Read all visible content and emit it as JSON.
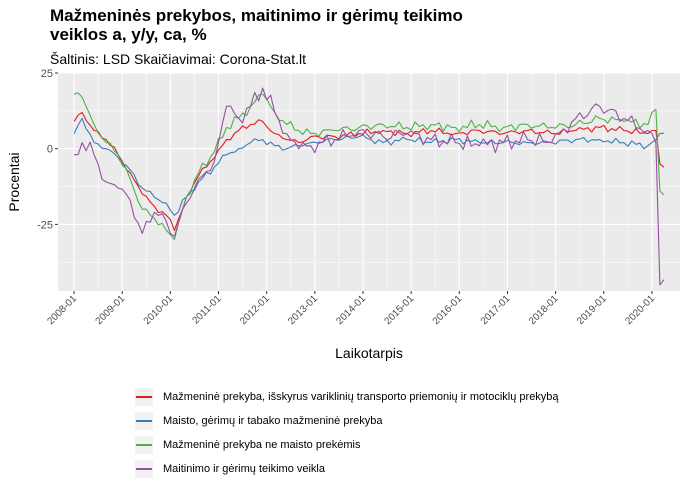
{
  "title": "Mažmeninės prekybos, maitinimo ir gėrimų teikimo veiklos a, y/y, ca, %",
  "subtitle": "Šaltinis: LSD Skaičiavimai: Corona-Stat.lt",
  "chart_data": {
    "type": "line",
    "xlabel": "Laikotarpis",
    "ylabel": "Procentai",
    "ylim": [
      -47,
      25
    ],
    "yticks": [
      -25,
      0,
      25
    ],
    "x_tick_labels": [
      "2008-01",
      "2009-01",
      "2010-01",
      "2011-01",
      "2012-01",
      "2013-01",
      "2014-01",
      "2015-01",
      "2016-01",
      "2017-01",
      "2018-01",
      "2019-01",
      "2020-01"
    ],
    "x_start": "2008-01",
    "x_end": "2020-04",
    "grid": true,
    "legend_position": "bottom",
    "series": [
      {
        "name": "Mažmeninė prekyba, išskyrus variklinių transporto priemonių ir motociklų prekybą",
        "color": "#e41a1c",
        "keypoints": [
          [
            "2008-01",
            9
          ],
          [
            "2008-03",
            12
          ],
          [
            "2008-06",
            6
          ],
          [
            "2008-09",
            3
          ],
          [
            "2008-12",
            -2
          ],
          [
            "2009-03",
            -8
          ],
          [
            "2009-06",
            -15
          ],
          [
            "2009-09",
            -19
          ],
          [
            "2009-12",
            -22
          ],
          [
            "2010-02",
            -27
          ],
          [
            "2010-05",
            -16
          ],
          [
            "2010-08",
            -9
          ],
          [
            "2010-12",
            -3
          ],
          [
            "2011-03",
            3
          ],
          [
            "2011-06",
            6
          ],
          [
            "2011-09",
            8
          ],
          [
            "2011-12",
            9
          ],
          [
            "2012-03",
            5
          ],
          [
            "2012-06",
            3
          ],
          [
            "2012-09",
            2
          ],
          [
            "2012-12",
            4
          ],
          [
            "2013-06",
            4
          ],
          [
            "2013-12",
            5
          ],
          [
            "2014-06",
            6
          ],
          [
            "2014-12",
            5
          ],
          [
            "2015-06",
            6
          ],
          [
            "2015-12",
            5
          ],
          [
            "2016-06",
            6
          ],
          [
            "2016-12",
            5
          ],
          [
            "2017-06",
            6
          ],
          [
            "2017-12",
            5
          ],
          [
            "2018-06",
            6
          ],
          [
            "2018-12",
            7
          ],
          [
            "2019-06",
            6
          ],
          [
            "2019-12",
            5
          ],
          [
            "2020-01",
            6
          ],
          [
            "2020-02",
            6
          ],
          [
            "2020-03",
            -5
          ]
        ]
      },
      {
        "name": "Maisto, gėrimų ir tabako mažmeninė prekyba",
        "color": "#377eb8",
        "keypoints": [
          [
            "2008-01",
            5
          ],
          [
            "2008-03",
            10
          ],
          [
            "2008-06",
            2
          ],
          [
            "2008-09",
            0
          ],
          [
            "2008-12",
            -3
          ],
          [
            "2009-03",
            -7
          ],
          [
            "2009-06",
            -13
          ],
          [
            "2009-09",
            -16
          ],
          [
            "2009-12",
            -18
          ],
          [
            "2010-02",
            -22
          ],
          [
            "2010-05",
            -16
          ],
          [
            "2010-08",
            -11
          ],
          [
            "2010-12",
            -6
          ],
          [
            "2011-03",
            -2
          ],
          [
            "2011-06",
            0
          ],
          [
            "2011-09",
            2
          ],
          [
            "2011-12",
            3
          ],
          [
            "2012-03",
            1
          ],
          [
            "2012-06",
            0
          ],
          [
            "2012-09",
            1
          ],
          [
            "2012-12",
            2
          ],
          [
            "2013-06",
            3
          ],
          [
            "2013-12",
            4
          ],
          [
            "2014-06",
            2
          ],
          [
            "2014-12",
            3
          ],
          [
            "2015-06",
            2
          ],
          [
            "2015-12",
            3
          ],
          [
            "2016-06",
            2
          ],
          [
            "2016-12",
            2
          ],
          [
            "2017-06",
            2
          ],
          [
            "2017-12",
            2
          ],
          [
            "2018-06",
            3
          ],
          [
            "2018-12",
            3
          ],
          [
            "2019-06",
            2
          ],
          [
            "2019-12",
            1
          ],
          [
            "2020-01",
            2
          ],
          [
            "2020-02",
            3
          ],
          [
            "2020-03",
            5
          ]
        ]
      },
      {
        "name": "Mažmeninė prekyba ne maisto prekėmis",
        "color": "#4daf4a",
        "keypoints": [
          [
            "2008-01",
            18
          ],
          [
            "2008-03",
            17
          ],
          [
            "2008-06",
            8
          ],
          [
            "2008-09",
            2
          ],
          [
            "2008-12",
            -2
          ],
          [
            "2009-03",
            -10
          ],
          [
            "2009-06",
            -20
          ],
          [
            "2009-09",
            -23
          ],
          [
            "2009-12",
            -27
          ],
          [
            "2010-02",
            -30
          ],
          [
            "2010-05",
            -16
          ],
          [
            "2010-08",
            -8
          ],
          [
            "2010-12",
            -1
          ],
          [
            "2011-03",
            7
          ],
          [
            "2011-06",
            10
          ],
          [
            "2011-09",
            14
          ],
          [
            "2011-12",
            18
          ],
          [
            "2012-03",
            12
          ],
          [
            "2012-06",
            8
          ],
          [
            "2012-09",
            6
          ],
          [
            "2012-12",
            5
          ],
          [
            "2013-06",
            6
          ],
          [
            "2013-12",
            7
          ],
          [
            "2014-06",
            8
          ],
          [
            "2014-12",
            7
          ],
          [
            "2015-06",
            8
          ],
          [
            "2015-12",
            7
          ],
          [
            "2016-06",
            8
          ],
          [
            "2016-12",
            7
          ],
          [
            "2017-06",
            8
          ],
          [
            "2017-12",
            7
          ],
          [
            "2018-06",
            8
          ],
          [
            "2018-12",
            10
          ],
          [
            "2019-06",
            9
          ],
          [
            "2019-12",
            8
          ],
          [
            "2020-01",
            12
          ],
          [
            "2020-02",
            13
          ],
          [
            "2020-03",
            -14
          ]
        ]
      },
      {
        "name": "Maitinimo ir gėrimų teikimo veikla",
        "color": "#984ea3",
        "keypoints": [
          [
            "2008-01",
            -2
          ],
          [
            "2008-03",
            2
          ],
          [
            "2008-06",
            -2
          ],
          [
            "2008-09",
            -11
          ],
          [
            "2008-12",
            -13
          ],
          [
            "2009-03",
            -17
          ],
          [
            "2009-06",
            -28
          ],
          [
            "2009-09",
            -21
          ],
          [
            "2009-12",
            -24
          ],
          [
            "2010-02",
            -29
          ],
          [
            "2010-05",
            -18
          ],
          [
            "2010-08",
            -10
          ],
          [
            "2010-12",
            -4
          ],
          [
            "2011-03",
            14
          ],
          [
            "2011-06",
            10
          ],
          [
            "2011-09",
            14
          ],
          [
            "2011-12",
            20
          ],
          [
            "2012-03",
            12
          ],
          [
            "2012-06",
            5
          ],
          [
            "2012-09",
            0
          ],
          [
            "2012-12",
            1
          ],
          [
            "2013-06",
            3
          ],
          [
            "2013-12",
            6
          ],
          [
            "2014-06",
            4
          ],
          [
            "2014-12",
            5
          ],
          [
            "2015-06",
            3
          ],
          [
            "2015-12",
            2
          ],
          [
            "2016-06",
            1
          ],
          [
            "2016-12",
            2
          ],
          [
            "2017-06",
            3
          ],
          [
            "2017-12",
            2
          ],
          [
            "2018-06",
            10
          ],
          [
            "2018-12",
            14
          ],
          [
            "2019-06",
            10
          ],
          [
            "2019-12",
            6
          ],
          [
            "2020-01",
            5
          ],
          [
            "2020-02",
            2
          ],
          [
            "2020-03",
            -45
          ]
        ]
      }
    ]
  }
}
